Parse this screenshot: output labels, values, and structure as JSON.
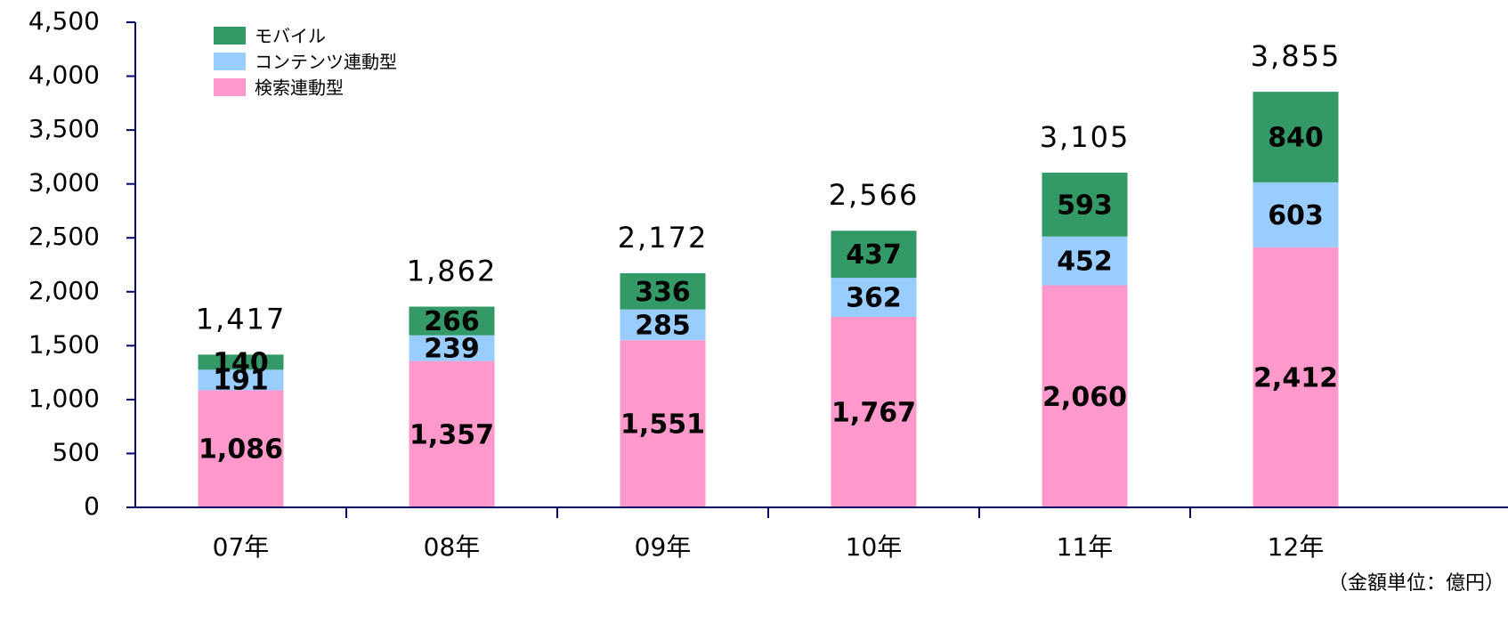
{
  "chart_data": {
    "type": "stacked_bar",
    "categories": [
      "07年",
      "08年",
      "09年",
      "10年",
      "11年",
      "12年"
    ],
    "series": [
      {
        "name": "検索連動型",
        "color": "#ff99cc",
        "values": [
          1086,
          1357,
          1551,
          1767,
          2060,
          2412
        ],
        "value_labels": [
          "1,086",
          "1,357",
          "1,551",
          "1,767",
          "2,060",
          "2,412"
        ]
      },
      {
        "name": "コンテンツ連動型",
        "color": "#99ccff",
        "values": [
          191,
          239,
          285,
          362,
          452,
          603
        ]
      },
      {
        "name": "モバイル",
        "color": "#339966",
        "values": [
          140,
          266,
          336,
          437,
          593,
          840
        ]
      }
    ],
    "totals": [
      1417,
      1862,
      2172,
      2566,
      3105,
      3855
    ],
    "total_labels": [
      "1,417",
      "1,862",
      "2,172",
      "2,566",
      "3,105",
      "3,855"
    ],
    "ylim": [
      0,
      4500
    ],
    "yticks": [
      0,
      500,
      {
        "value": 1000,
        "label": "1,000"
      },
      {
        "value": 1500,
        "label": "1,500"
      },
      {
        "value": 2000,
        "label": "2,000"
      },
      {
        "value": 2500,
        "label": "2,500"
      },
      {
        "value": 3000,
        "label": "3,000"
      },
      {
        "value": 3500,
        "label": "3,500"
      },
      {
        "value": 4000,
        "label": "4,000"
      },
      {
        "value": 4500,
        "label": "4,500"
      }
    ],
    "note": "（金額単位：億円）",
    "legend": "top-left"
  }
}
